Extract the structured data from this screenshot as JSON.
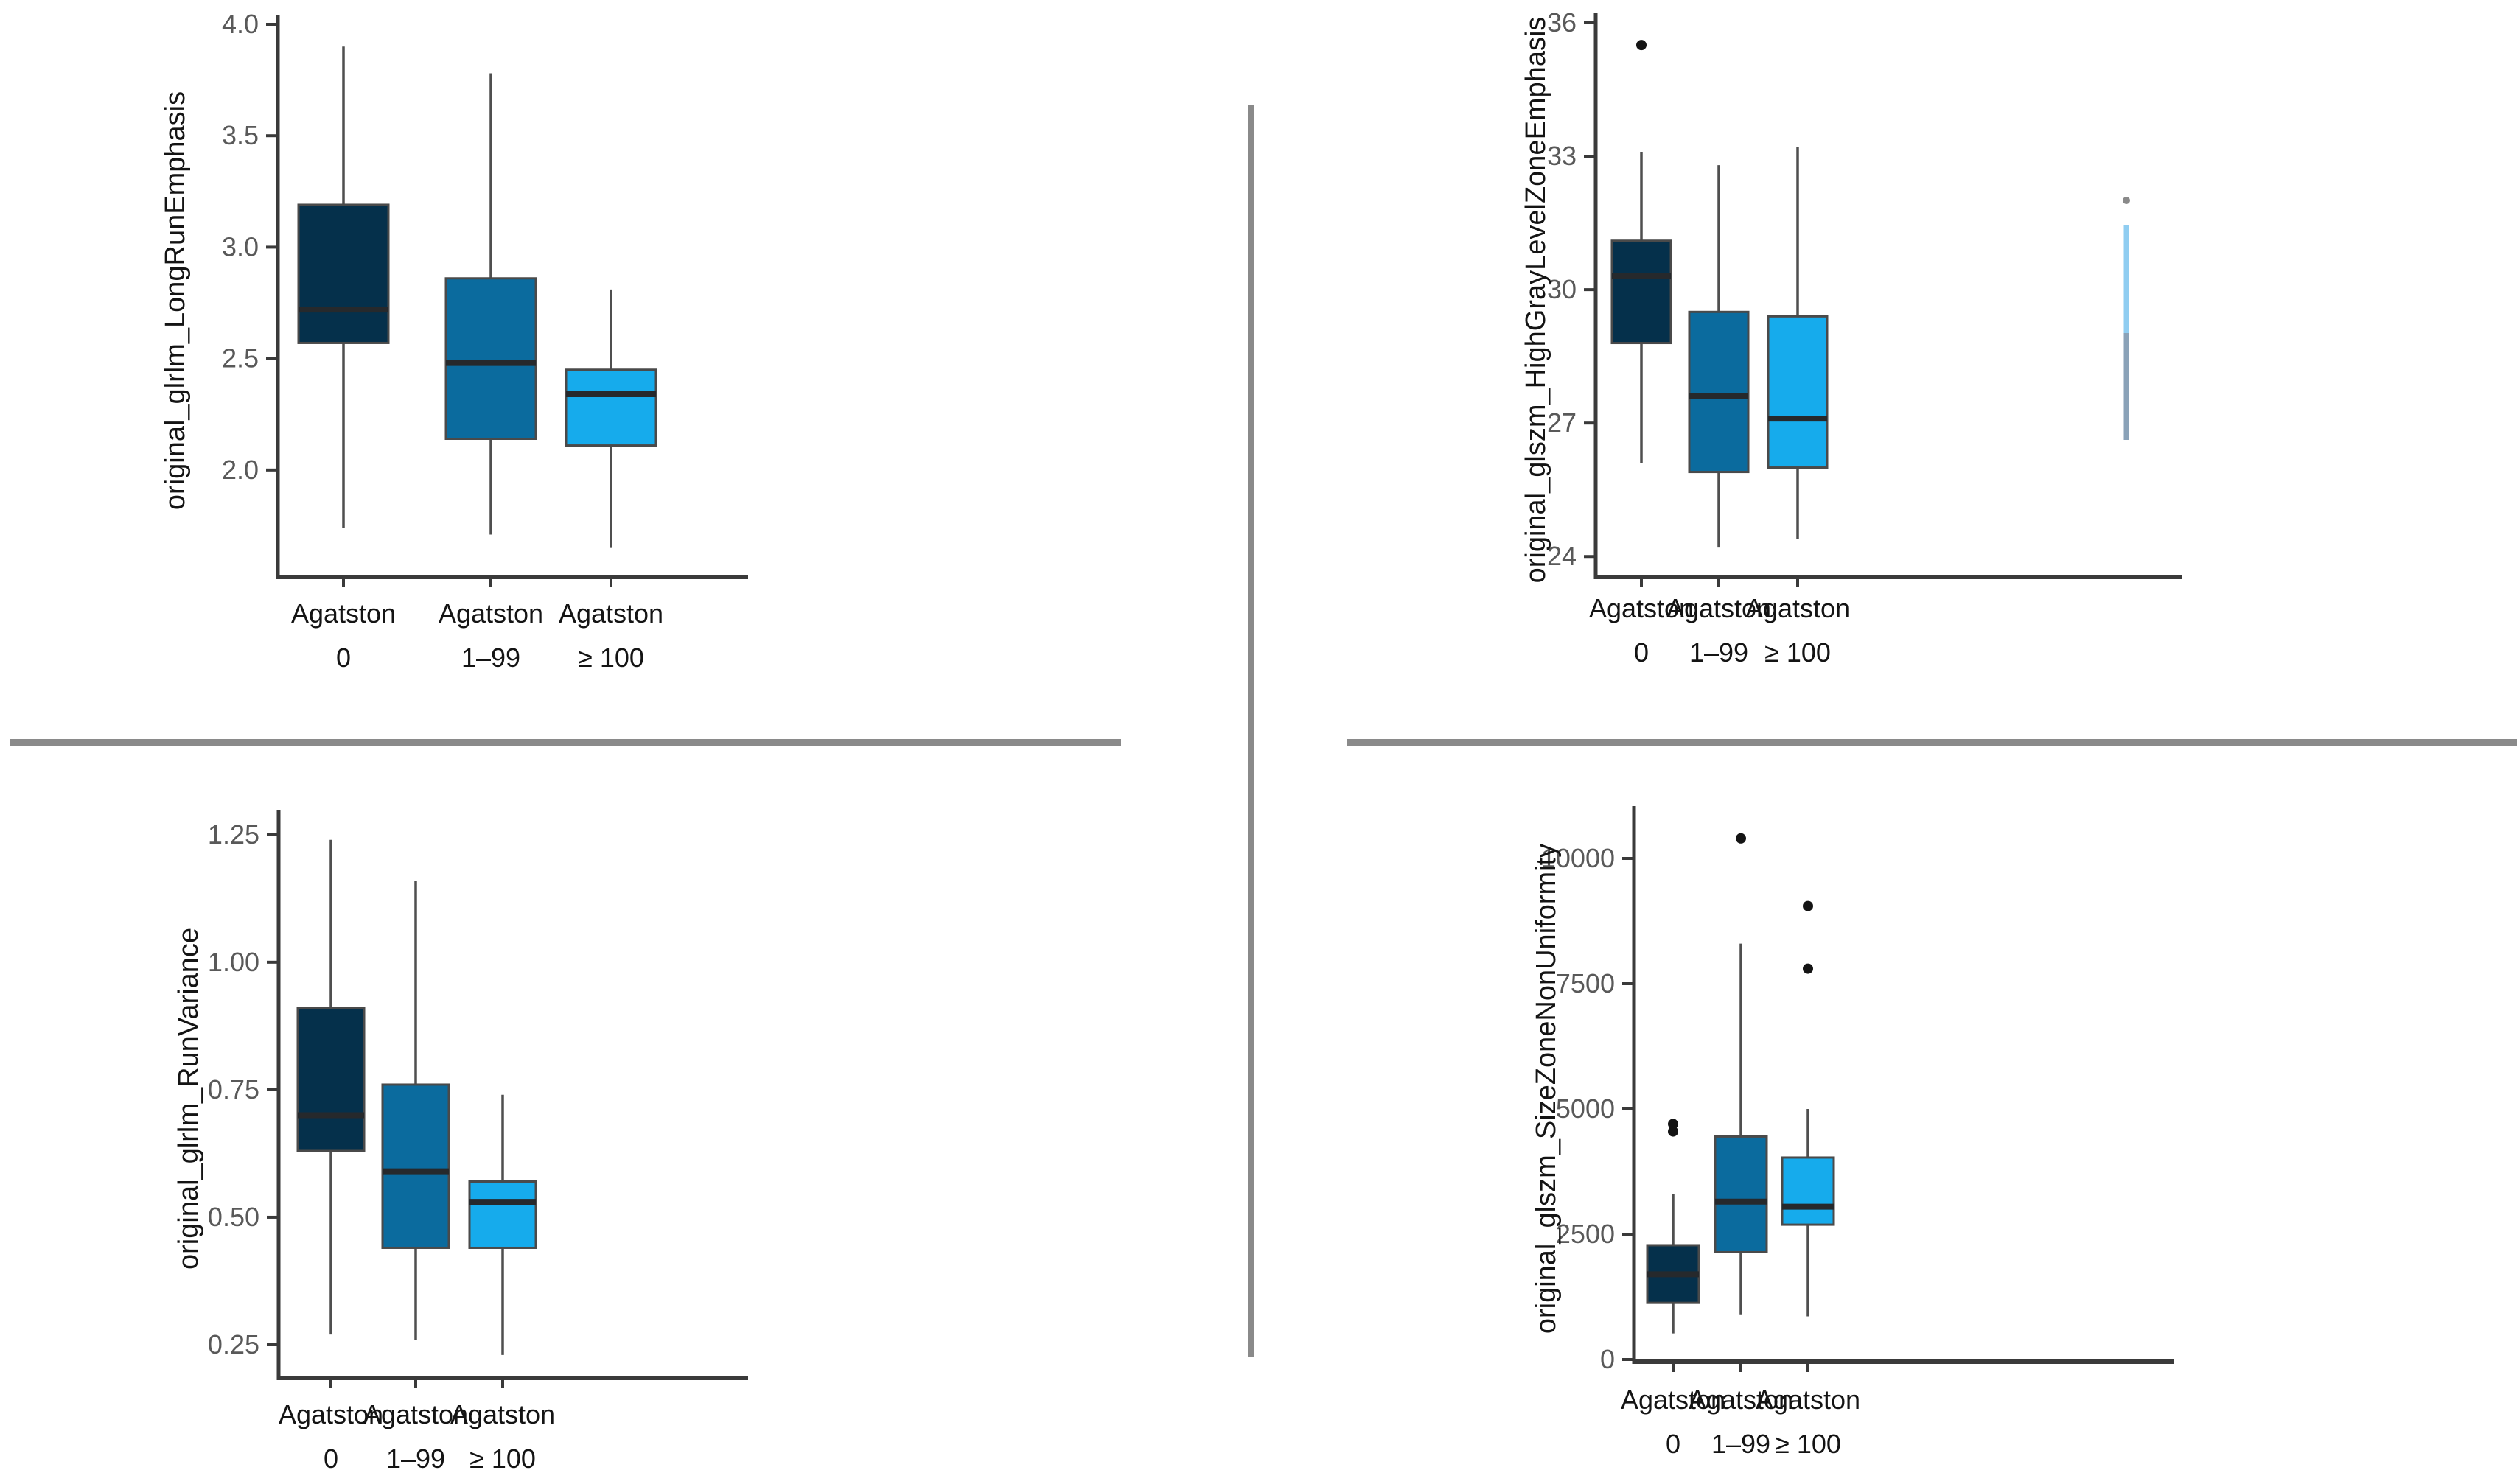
{
  "figure": {
    "background": "#ffffff",
    "description": "2x2 grid of box plots of radiomics features grouped by Agatston score"
  },
  "palette": {
    "box_fill": [
      "#05304b",
      "#0b6b9e",
      "#16abec"
    ],
    "box_stroke": "#4a4a4a",
    "median": "#26292c",
    "whisker": "#4f4f4f",
    "axis": "#3a3a3a",
    "tick_text": "#595959",
    "label_text": "#141414",
    "outlier": "#141414",
    "divider": "#8a8a8a",
    "stray_line_top": "#8fcdf1",
    "stray_line_bottom": "#8aa2b8",
    "stray_dot": "#8a8a8a"
  },
  "chart_data": [
    {
      "type": "boxplot",
      "title": "",
      "xlabel": "",
      "ylabel": "original_glrlm_LongRunEmphasis",
      "yticks": [
        2.0,
        2.5,
        3.0,
        3.5,
        4.0
      ],
      "ytick_labels": [
        "2.0",
        "2.5",
        "3.0",
        "3.5",
        "4.0"
      ],
      "ylim": [
        1.52,
        4.0
      ],
      "grid": false,
      "legend": "none",
      "categories": [
        {
          "line1": "Agatston",
          "line2": "0"
        },
        {
          "line1": "Agatston",
          "line2": "1–99"
        },
        {
          "line1": "Agatston",
          "line2": "≥ 100"
        }
      ],
      "series": [
        {
          "name": "Agatston 0",
          "whisker_low": 1.74,
          "q1": 2.57,
          "median": 2.72,
          "q3": 3.19,
          "whisker_high": 3.9,
          "outliers": []
        },
        {
          "name": "Agatston 1–99",
          "whisker_low": 1.71,
          "q1": 2.14,
          "median": 2.48,
          "q3": 2.86,
          "whisker_high": 3.78,
          "outliers": []
        },
        {
          "name": "Agatston ≥ 100",
          "whisker_low": 1.65,
          "q1": 2.11,
          "median": 2.34,
          "q3": 2.45,
          "whisker_high": 2.81,
          "outliers": []
        }
      ]
    },
    {
      "type": "boxplot",
      "title": "",
      "xlabel": "",
      "ylabel": "original_glszm_HighGrayLevelZoneEmphasis",
      "yticks": [
        24,
        27,
        30,
        33,
        36
      ],
      "ytick_labels": [
        "24",
        "27",
        "30",
        "33",
        "36"
      ],
      "ylim": [
        23.54,
        36.0
      ],
      "grid": false,
      "legend": "none",
      "categories": [
        {
          "line1": "Agatston",
          "line2": "0"
        },
        {
          "line1": "Agatston",
          "line2": "1–99"
        },
        {
          "line1": "Agatston",
          "line2": "≥ 100"
        }
      ],
      "series": [
        {
          "name": "Agatston 0",
          "whisker_low": 26.1,
          "q1": 28.8,
          "median": 30.3,
          "q3": 31.1,
          "whisker_high": 33.1,
          "outliers": [
            35.5
          ]
        },
        {
          "name": "Agatston 1–99",
          "whisker_low": 24.2,
          "q1": 25.9,
          "median": 27.6,
          "q3": 29.5,
          "whisker_high": 32.8,
          "outliers": []
        },
        {
          "name": "Agatston ≥ 100",
          "whisker_low": 24.4,
          "q1": 26.0,
          "median": 27.1,
          "q3": 29.4,
          "whisker_high": 33.2,
          "outliers": []
        }
      ]
    },
    {
      "type": "boxplot",
      "title": "",
      "xlabel": "",
      "ylabel": "original_glrlm_RunVariance",
      "yticks": [
        0.25,
        0.5,
        0.75,
        1.0,
        1.25
      ],
      "ytick_labels": [
        "0.25",
        "0.50",
        "0.75",
        "1.00",
        "1.25"
      ],
      "ylim": [
        0.185,
        1.28
      ],
      "grid": false,
      "legend": "none",
      "categories": [
        {
          "line1": "Agatston",
          "line2": "0"
        },
        {
          "line1": "Agatston",
          "line2": "1–99"
        },
        {
          "line1": "Agatston",
          "line2": "≥ 100"
        }
      ],
      "series": [
        {
          "name": "Agatston 0",
          "whisker_low": 0.27,
          "q1": 0.63,
          "median": 0.7,
          "q3": 0.91,
          "whisker_high": 1.24,
          "outliers": []
        },
        {
          "name": "Agatston 1–99",
          "whisker_low": 0.26,
          "q1": 0.44,
          "median": 0.59,
          "q3": 0.76,
          "whisker_high": 1.16,
          "outliers": []
        },
        {
          "name": "Agatston ≥ 100",
          "whisker_low": 0.23,
          "q1": 0.44,
          "median": 0.53,
          "q3": 0.57,
          "whisker_high": 0.74,
          "outliers": []
        }
      ]
    },
    {
      "type": "boxplot",
      "title": "",
      "xlabel": "",
      "ylabel": "original_glszm_SizeZoneNonUniformity",
      "yticks": [
        0,
        2500,
        5000,
        7500,
        10000
      ],
      "ytick_labels": [
        "0",
        "2500",
        "5000",
        "7500",
        "10000"
      ],
      "ylim": [
        -44,
        10853
      ],
      "grid": false,
      "legend": "none",
      "categories": [
        {
          "line1": "Agatston",
          "line2": "0"
        },
        {
          "line1": "Agatston",
          "line2": "1–99"
        },
        {
          "line1": "Agatston",
          "line2": "≥ 100"
        }
      ],
      "series": [
        {
          "name": "Agatston 0",
          "whisker_low": 520,
          "q1": 1130,
          "median": 1700,
          "q3": 2280,
          "whisker_high": 3300,
          "outliers": [
            4550,
            4700
          ]
        },
        {
          "name": "Agatston 1–99",
          "whisker_low": 900,
          "q1": 2140,
          "median": 3150,
          "q3": 4450,
          "whisker_high": 8300,
          "outliers": [
            10400
          ]
        },
        {
          "name": "Agatston ≥ 100",
          "whisker_low": 860,
          "q1": 2690,
          "median": 3050,
          "q3": 4030,
          "whisker_high": 5000,
          "outliers": [
            7800,
            9050
          ]
        }
      ]
    }
  ]
}
